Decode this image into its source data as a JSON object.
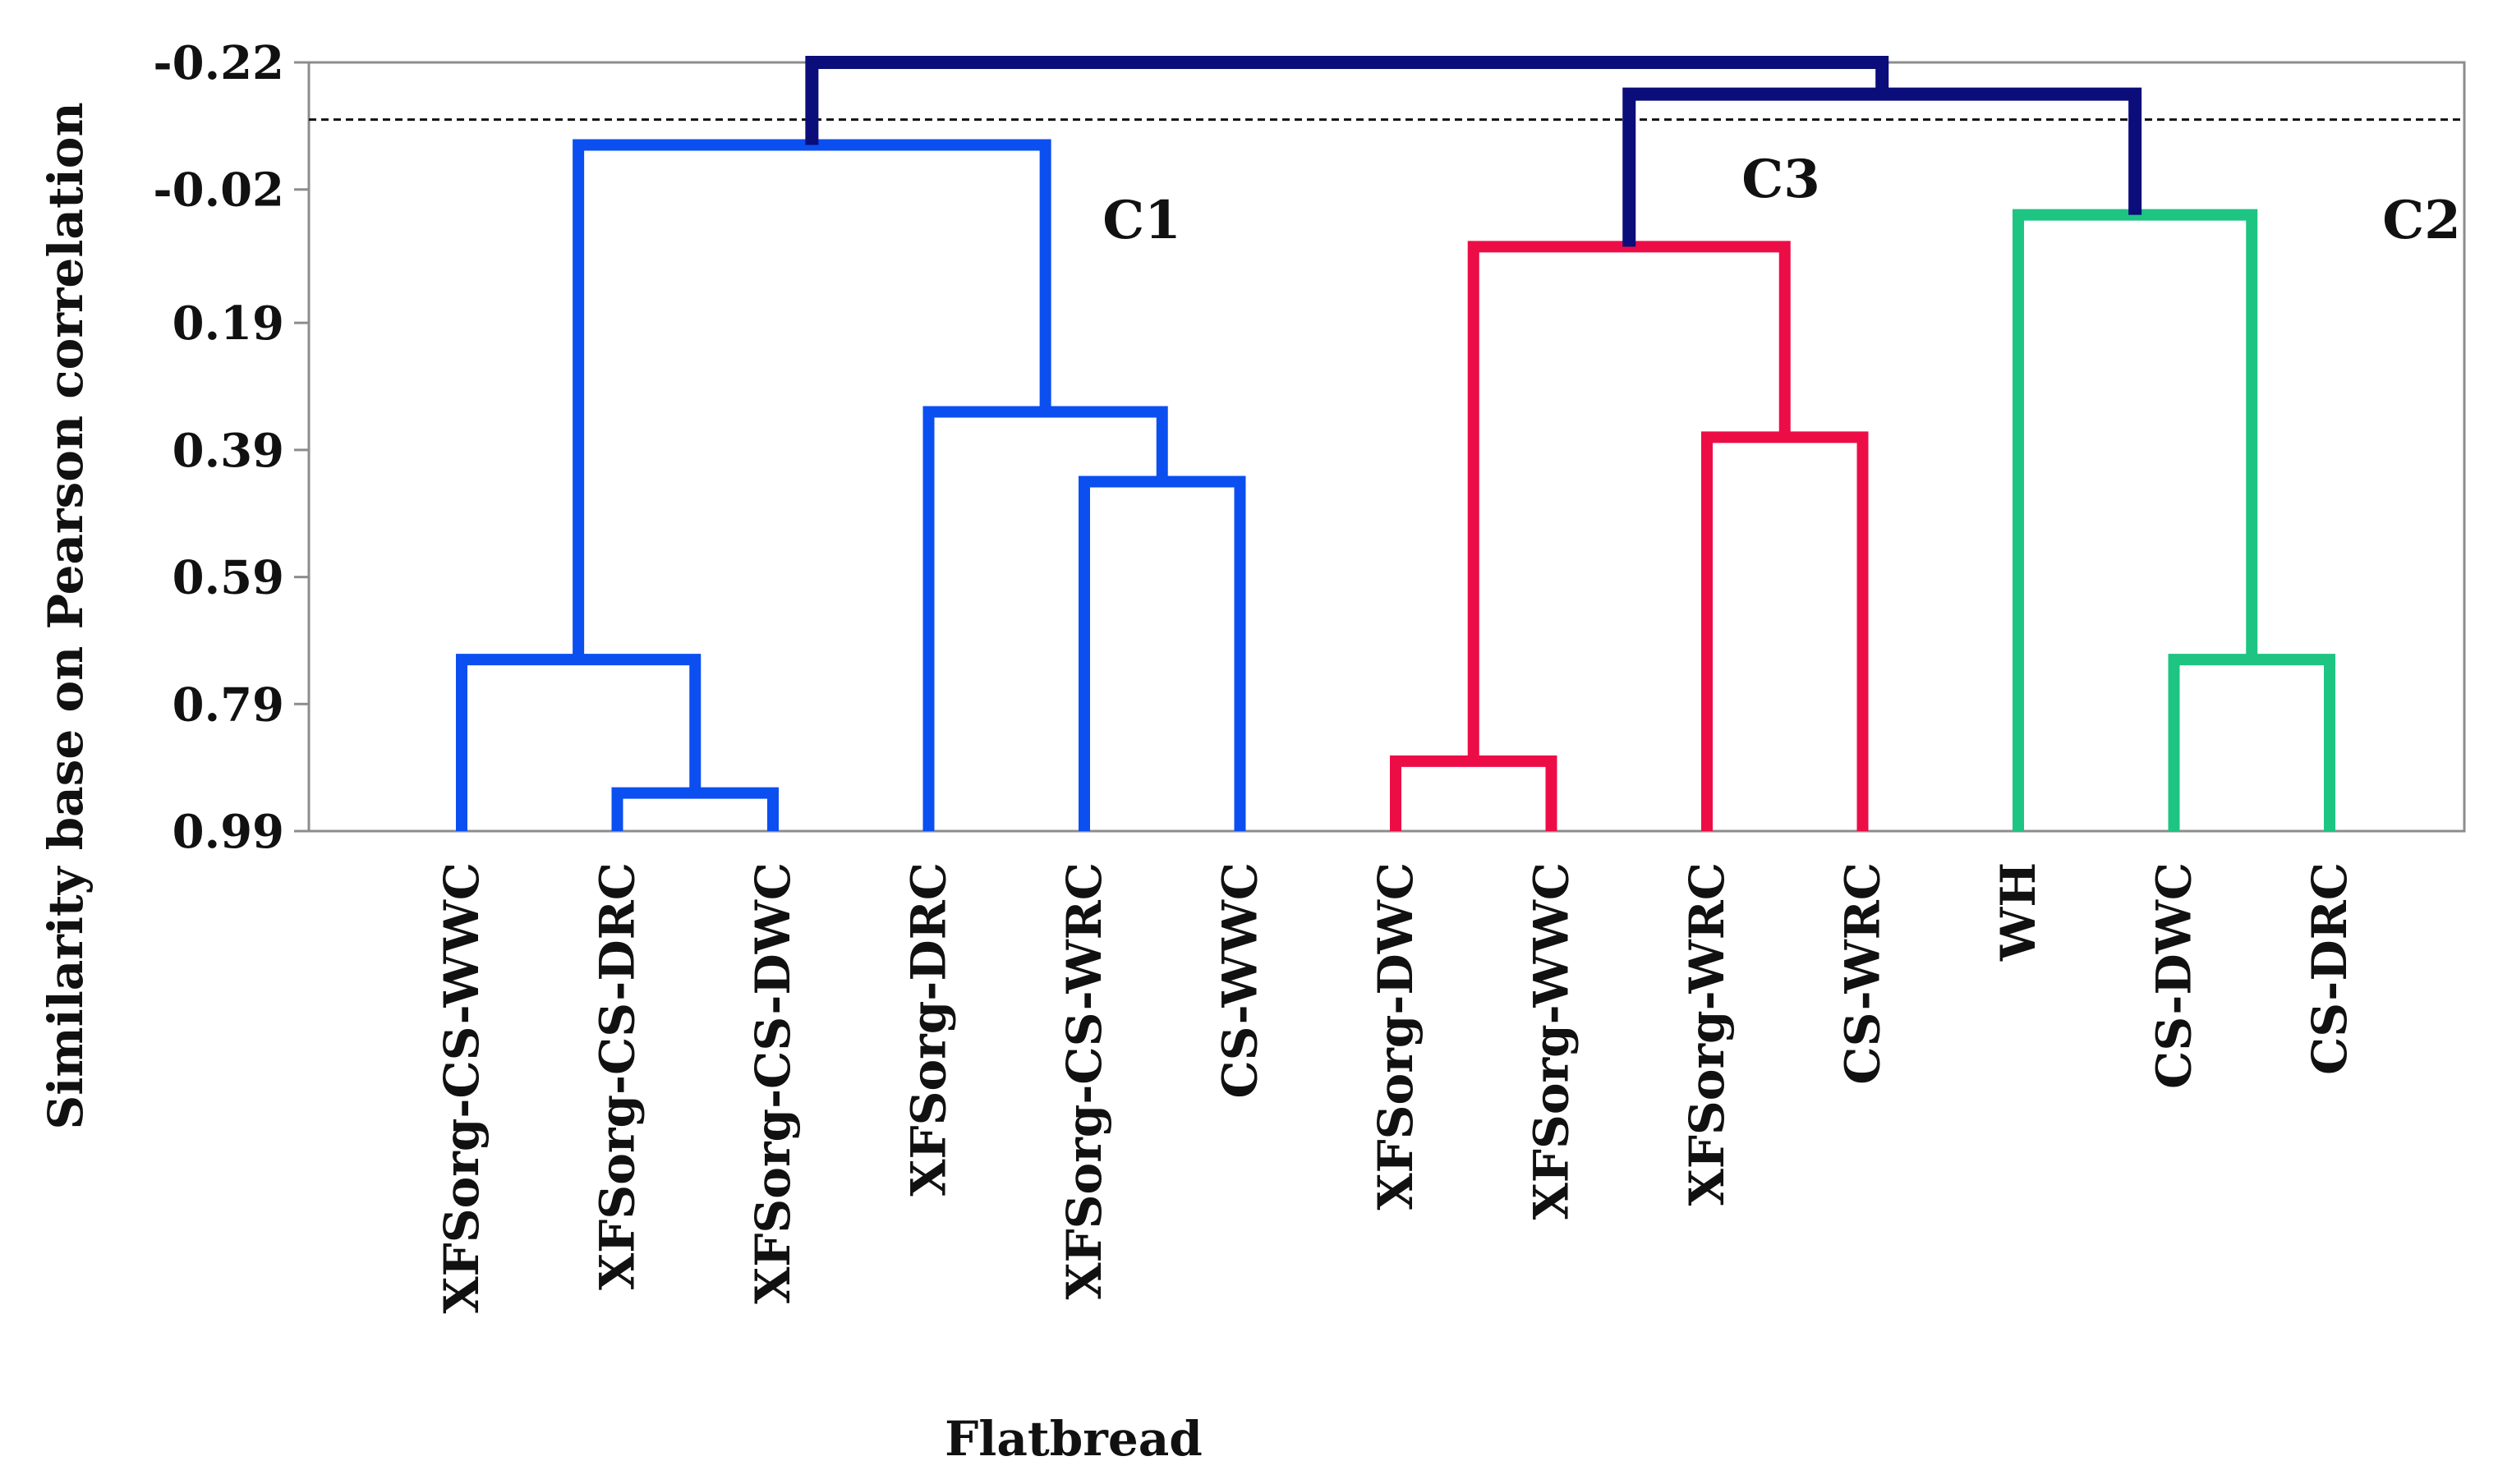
{
  "chart_data": {
    "type": "dendrogram",
    "title": "",
    "xlabel": "Flatbread",
    "ylabel": "Similarity base on Pearson correlation",
    "y_ticks": [
      -0.22,
      -0.02,
      0.19,
      0.39,
      0.59,
      0.79,
      0.99
    ],
    "y_tick_labels": [
      "-0.22",
      "-0.02",
      "0.19",
      "0.39",
      "0.59",
      "0.79",
      "0.99"
    ],
    "ylim": [
      -0.22,
      0.99
    ],
    "y_inverted": true,
    "truncation_line": -0.13,
    "leaves": [
      {
        "label": "XFSorg-CS-WWC",
        "cluster": "C1"
      },
      {
        "label": "XFSorg-CS-DRC",
        "cluster": "C1"
      },
      {
        "label": "XFSorg-CS-DWC",
        "cluster": "C1"
      },
      {
        "label": "XFSorg-DRC",
        "cluster": "C1"
      },
      {
        "label": "XFSorg-CS-WRC",
        "cluster": "C1"
      },
      {
        "label": "CS-WWC",
        "cluster": "C1"
      },
      {
        "label": "XFSorg-DWC",
        "cluster": "C3"
      },
      {
        "label": "XFSorg-WWC",
        "cluster": "C3"
      },
      {
        "label": "XFSorg-WRC",
        "cluster": "C3"
      },
      {
        "label": "CS-WRC",
        "cluster": "C3"
      },
      {
        "label": "WH",
        "cluster": "C2"
      },
      {
        "label": "CS-DWC",
        "cluster": "C2"
      },
      {
        "label": "CS-DRC",
        "cluster": "C2"
      }
    ],
    "merges": [
      {
        "id": "m1",
        "left": 1,
        "right": 2,
        "height": 0.93,
        "color": "C1"
      },
      {
        "id": "m2",
        "left": 0,
        "right": "m1",
        "height": 0.72,
        "color": "C1"
      },
      {
        "id": "m3",
        "left": 4,
        "right": 5,
        "height": 0.44,
        "color": "C1"
      },
      {
        "id": "m4",
        "left": 3,
        "right": "m3",
        "height": 0.33,
        "color": "C1"
      },
      {
        "id": "m5",
        "left": "m2",
        "right": "m4",
        "height": -0.09,
        "color": "C1"
      },
      {
        "id": "m6",
        "left": 6,
        "right": 7,
        "height": 0.88,
        "color": "C3"
      },
      {
        "id": "m7",
        "left": 8,
        "right": 9,
        "height": 0.37,
        "color": "C3"
      },
      {
        "id": "m8",
        "left": "m6",
        "right": "m7",
        "height": 0.07,
        "color": "C3"
      },
      {
        "id": "m9",
        "left": 11,
        "right": 12,
        "height": 0.72,
        "color": "C2"
      },
      {
        "id": "m10",
        "left": 10,
        "right": "m9",
        "height": 0.02,
        "color": "C2"
      },
      {
        "id": "m11",
        "left": "m8",
        "right": "m10",
        "height": -0.17,
        "color": "root"
      },
      {
        "id": "m12",
        "left": "m5",
        "right": "m11",
        "height": -0.22,
        "color": "root"
      }
    ],
    "clusters": [
      {
        "name": "C1",
        "label": "C1",
        "color": "#0b4ff0"
      },
      {
        "name": "C3",
        "label": "C3",
        "color": "#ec0d47"
      },
      {
        "name": "C2",
        "label": "C2",
        "color": "#1ec482"
      },
      {
        "name": "root",
        "label": "",
        "color": "#0a0d7a"
      }
    ]
  }
}
